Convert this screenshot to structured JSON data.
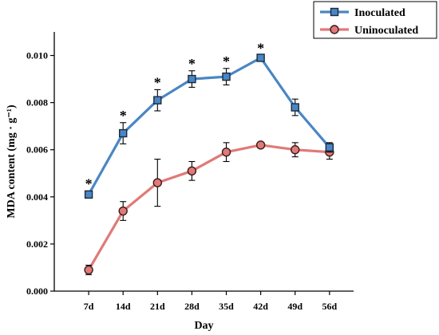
{
  "chart_data": {
    "type": "line",
    "categories": [
      "7d",
      "14d",
      "21d",
      "28d",
      "35d",
      "42d",
      "49d",
      "56d"
    ],
    "xlabel": "Day",
    "ylabel": "MDA content (mg · g⁻¹)",
    "ylim": [
      0.0,
      0.011
    ],
    "yticks": [
      "0.000",
      "0.002",
      "0.004",
      "0.006",
      "0.008",
      "0.010"
    ],
    "grid": false,
    "legend_position": "top-right",
    "series": [
      {
        "name": "Inoculated",
        "color": "#4a86c5",
        "marker": "square",
        "values": [
          0.0041,
          0.0067,
          0.0081,
          0.009,
          0.0091,
          0.0099,
          0.0078,
          0.0061
        ],
        "errors": [
          0.00015,
          0.00045,
          0.00045,
          0.00035,
          0.00035,
          0.0001,
          0.00035,
          0.0002
        ],
        "significant": [
          true,
          true,
          true,
          true,
          true,
          true,
          false,
          false
        ]
      },
      {
        "name": "Uninoculated",
        "color": "#e07a78",
        "marker": "circle",
        "values": [
          0.0009,
          0.0034,
          0.0046,
          0.0051,
          0.0059,
          0.0062,
          0.006,
          0.0059
        ],
        "errors": [
          0.0002,
          0.0004,
          0.001,
          0.0004,
          0.0004,
          0.0001,
          0.0003,
          0.0003
        ]
      }
    ],
    "annotation_symbol": "*"
  }
}
